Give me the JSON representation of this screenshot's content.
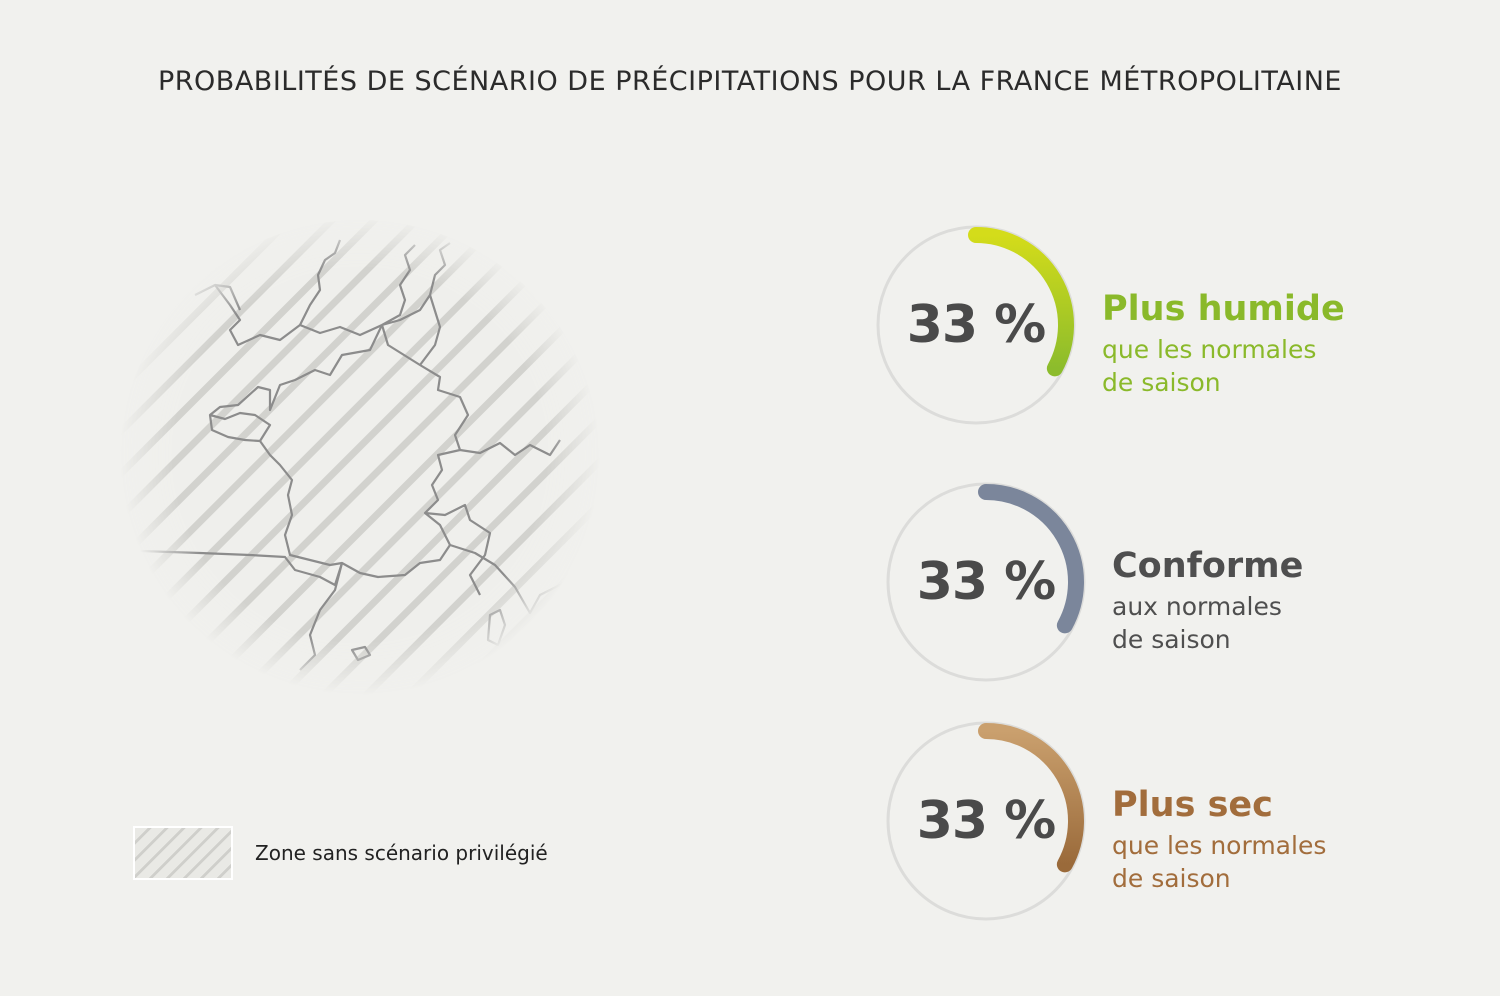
{
  "title": "PROBABILITÉS DE SCÉNARIO DE PRÉCIPITATIONS POUR LA FRANCE MÉTROPOLITAINE",
  "legend": {
    "label": "Zone sans scénario privilégié"
  },
  "scenarios": [
    {
      "id": "humide",
      "percent_text": "33 %",
      "probability": 0.33,
      "label": "Plus humide",
      "sublabel_1": "que les normales",
      "sublabel_2": "de saison",
      "color_start": "#d4dc1a",
      "color_end": "#8cbc2c",
      "label_color": "#8ab92a"
    },
    {
      "id": "conforme",
      "percent_text": "33 %",
      "probability": 0.33,
      "label": "Conforme",
      "sublabel_1": "aux normales",
      "sublabel_2": "de saison",
      "color_start": "#7b869b",
      "color_end": "#7b869b",
      "label_color": "#4f4f4f"
    },
    {
      "id": "sec",
      "percent_text": "33 %",
      "probability": 0.33,
      "label": "Plus sec",
      "sublabel_1": "que les normales",
      "sublabel_2": "de saison",
      "color_start": "#caa06e",
      "color_end": "#9a6a3a",
      "label_color": "#a26d3c"
    }
  ],
  "colors": {
    "background": "#f1f1ee",
    "ring": "#dcdcda",
    "map_border": "#8c8c8c",
    "hatch": "#d2d2ce"
  }
}
